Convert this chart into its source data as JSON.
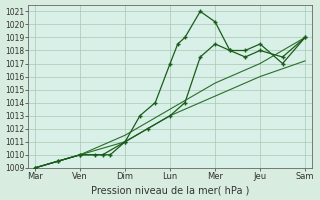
{
  "title": "Pression niveau de la mer( hPa )",
  "bg_color": "#d8ece0",
  "plot_bg_color": "#d8f0e8",
  "grid_color": "#a8c8b0",
  "line_color_main": "#1a5c1a",
  "line_color_band": "#2a6e2a",
  "ylim": [
    1009,
    1021.5
  ],
  "yticks": [
    1009,
    1010,
    1011,
    1012,
    1013,
    1014,
    1015,
    1016,
    1017,
    1018,
    1019,
    1020,
    1021
  ],
  "xtick_labels": [
    "Mar",
    "Ven",
    "Dim",
    "Lun",
    "Mer",
    "Jeu",
    "Sam"
  ],
  "xtick_positions": [
    0,
    1,
    2,
    3,
    4,
    5,
    6
  ],
  "line1_x": [
    0,
    0.5,
    1.0,
    1.33,
    1.67,
    2.0,
    2.33,
    2.67,
    3.0,
    3.17,
    3.33,
    3.67,
    4.0,
    4.33,
    4.67,
    5.0,
    5.5,
    6.0
  ],
  "line1_y": [
    1009,
    1009.5,
    1010,
    1010,
    1010,
    1011,
    1013,
    1014,
    1017,
    1018.5,
    1019,
    1021,
    1020.2,
    1018,
    1018,
    1018.5,
    1017.0,
    1019
  ],
  "line2_x": [
    0,
    0.5,
    1.0,
    1.5,
    2.0,
    2.5,
    3.0,
    3.33,
    3.67,
    4.0,
    4.33,
    4.67,
    5.0,
    5.5,
    6.0
  ],
  "line2_y": [
    1009,
    1009.5,
    1010,
    1010,
    1011,
    1012,
    1013,
    1014,
    1017.5,
    1018.5,
    1018,
    1017.5,
    1018.0,
    1017.5,
    1019
  ],
  "line3_x": [
    0,
    1.0,
    2.0,
    3.0,
    4.0,
    5.0,
    6.0
  ],
  "line3_y": [
    1009,
    1010,
    1011,
    1013,
    1014.5,
    1016.0,
    1017.2
  ],
  "line4_x": [
    0,
    1.0,
    2.0,
    3.0,
    4.0,
    5.0,
    6.0
  ],
  "line4_y": [
    1009,
    1010,
    1011.5,
    1013.5,
    1015.5,
    1017.0,
    1019.0
  ]
}
